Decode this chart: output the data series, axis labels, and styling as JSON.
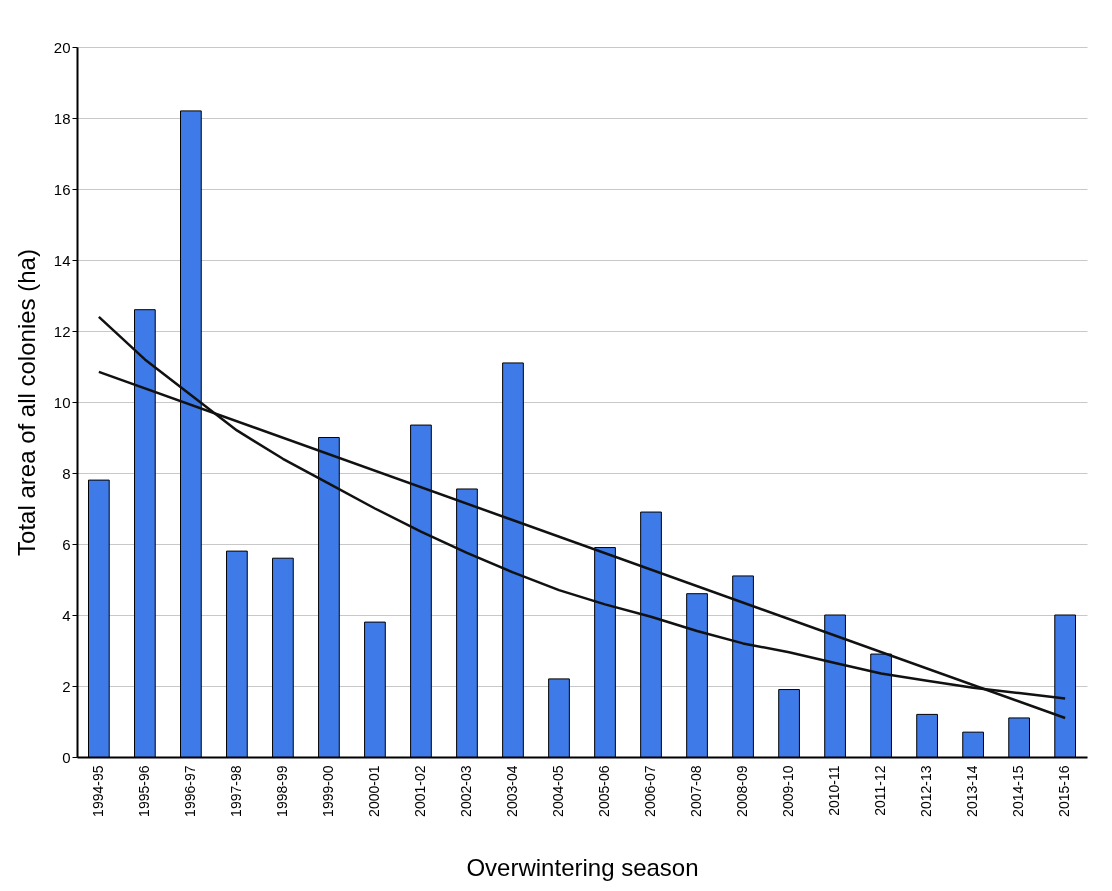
{
  "chart_data": {
    "type": "bar",
    "xlabel": "Overwintering season",
    "ylabel": "Total area of all colonies (ha)",
    "categories": [
      "1994-95",
      "1995-96",
      "1996-97",
      "1997-98",
      "1998-99",
      "1999-00",
      "2000-01",
      "2001-02",
      "2002-03",
      "2003-04",
      "2004-05",
      "2005-06",
      "2006-07",
      "2007-08",
      "2008-09",
      "2009-10",
      "2010-11",
      "2011-12",
      "2012-13",
      "2013-14",
      "2014-15",
      "2015-16"
    ],
    "series": [
      {
        "color": "#3f7be8",
        "values": [
          7.8,
          12.6,
          18.2,
          5.8,
          5.6,
          9.0,
          3.8,
          9.35,
          7.55,
          11.1,
          2.2,
          5.9,
          6.9,
          4.6,
          5.1,
          1.9,
          4.0,
          2.9,
          1.2,
          0.7,
          1.1,
          4.0
        ]
      },
      {
        "type": "line",
        "color": "#111111",
        "x": [
          "1994-95",
          "2015-16"
        ],
        "values": [
          10.85,
          1.1
        ]
      },
      {
        "type": "line",
        "color": "#111111",
        "values": [
          12.4,
          11.2,
          10.2,
          9.2,
          8.4,
          7.7,
          7.0,
          6.35,
          5.75,
          5.2,
          4.7,
          4.3,
          3.95,
          3.55,
          3.2,
          2.95,
          2.65,
          2.35,
          2.15,
          1.95,
          1.8,
          1.65
        ]
      }
    ],
    "ylim": [
      0,
      20
    ],
    "yticks": [
      0,
      2,
      4,
      6,
      8,
      10,
      12,
      14,
      16,
      18,
      20
    ],
    "grid": "y",
    "marker": "none",
    "line_style": "solid"
  }
}
